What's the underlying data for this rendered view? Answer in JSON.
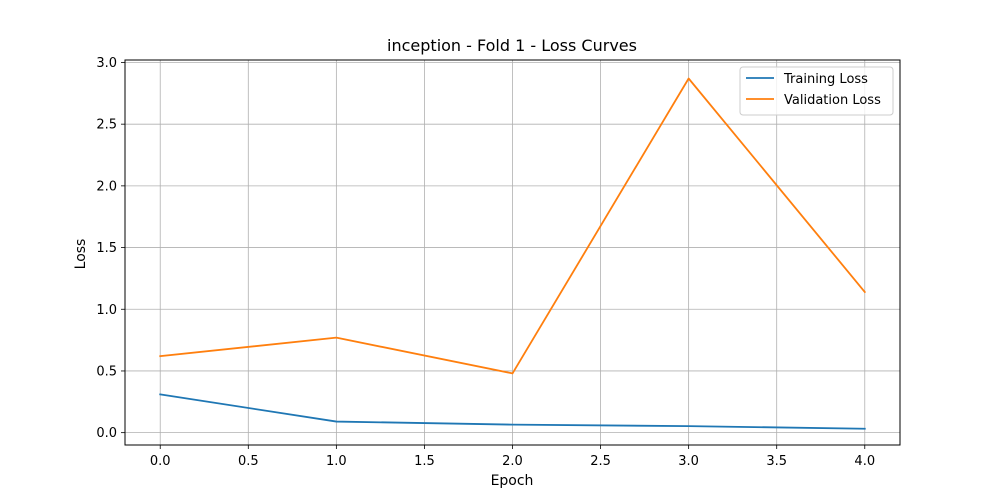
{
  "chart_data": {
    "type": "line",
    "title": "inception - Fold 1 - Loss Curves",
    "xlabel": "Epoch",
    "ylabel": "Loss",
    "x": [
      0,
      1,
      2,
      3,
      4
    ],
    "xlim": [
      -0.2,
      4.2
    ],
    "ylim": [
      -0.1,
      3.02
    ],
    "xticks": [
      0.0,
      0.5,
      1.0,
      1.5,
      2.0,
      2.5,
      3.0,
      3.5,
      4.0
    ],
    "xtick_labels": [
      "0.0",
      "0.5",
      "1.0",
      "1.5",
      "2.0",
      "2.5",
      "3.0",
      "3.5",
      "4.0"
    ],
    "yticks": [
      0.0,
      0.5,
      1.0,
      1.5,
      2.0,
      2.5,
      3.0
    ],
    "ytick_labels": [
      "0.0",
      "0.5",
      "1.0",
      "1.5",
      "2.0",
      "2.5",
      "3.0"
    ],
    "grid": true,
    "legend_position": "top-right",
    "series": [
      {
        "name": "Training Loss",
        "color": "#1f77b4",
        "values": [
          0.31,
          0.09,
          0.065,
          0.053,
          0.032
        ]
      },
      {
        "name": "Validation Loss",
        "color": "#ff7f0e",
        "values": [
          0.62,
          0.77,
          0.48,
          2.87,
          1.14
        ]
      }
    ]
  }
}
